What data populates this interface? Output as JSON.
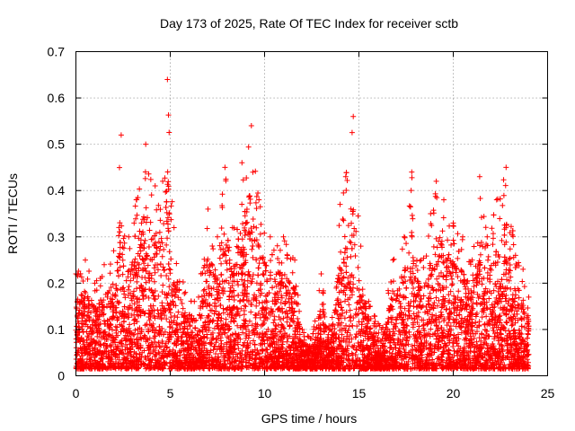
{
  "chart_data": {
    "type": "scatter",
    "title": "Day 173 of 2025, Rate Of TEC Index for receiver sctb",
    "xlabel": "GPS time / hours",
    "ylabel": "ROTI / TECUs",
    "xlim": [
      0,
      25
    ],
    "ylim": [
      0,
      0.7
    ],
    "x_ticks": [
      "0",
      "5",
      "10",
      "15",
      "20",
      "25"
    ],
    "y_ticks": [
      "0",
      "0.1",
      "0.2",
      "0.3",
      "0.4",
      "0.5",
      "0.6",
      "0.7"
    ],
    "grid": true,
    "marker": "+",
    "series_color": "#ff0000",
    "series": [
      {
        "name": "ROTI",
        "envelope_note": "upper envelope of dense scatter, (hour, ROTI)",
        "envelope": [
          [
            0.0,
            0.22
          ],
          [
            0.5,
            0.25
          ],
          [
            1.0,
            0.2
          ],
          [
            1.5,
            0.24
          ],
          [
            2.0,
            0.27
          ],
          [
            2.4,
            0.52
          ],
          [
            2.8,
            0.3
          ],
          [
            3.2,
            0.38
          ],
          [
            3.7,
            0.5
          ],
          [
            4.2,
            0.41
          ],
          [
            4.6,
            0.42
          ],
          [
            4.85,
            0.64
          ],
          [
            5.2,
            0.32
          ],
          [
            5.8,
            0.18
          ],
          [
            6.5,
            0.17
          ],
          [
            7.0,
            0.36
          ],
          [
            7.5,
            0.3
          ],
          [
            7.9,
            0.45
          ],
          [
            8.3,
            0.32
          ],
          [
            8.8,
            0.46
          ],
          [
            9.3,
            0.54
          ],
          [
            9.7,
            0.38
          ],
          [
            10.3,
            0.3
          ],
          [
            11.0,
            0.3
          ],
          [
            11.6,
            0.25
          ],
          [
            12.0,
            0.1
          ],
          [
            12.5,
            0.08
          ],
          [
            13.0,
            0.22
          ],
          [
            13.5,
            0.1
          ],
          [
            14.0,
            0.37
          ],
          [
            14.3,
            0.43
          ],
          [
            14.7,
            0.56
          ],
          [
            15.1,
            0.28
          ],
          [
            15.6,
            0.15
          ],
          [
            16.2,
            0.1
          ],
          [
            16.8,
            0.25
          ],
          [
            17.4,
            0.3
          ],
          [
            17.8,
            0.44
          ],
          [
            18.3,
            0.25
          ],
          [
            18.8,
            0.35
          ],
          [
            19.1,
            0.42
          ],
          [
            19.5,
            0.38
          ],
          [
            20.0,
            0.33
          ],
          [
            20.5,
            0.3
          ],
          [
            21.0,
            0.25
          ],
          [
            21.4,
            0.43
          ],
          [
            21.8,
            0.3
          ],
          [
            22.3,
            0.38
          ],
          [
            22.8,
            0.45
          ],
          [
            23.3,
            0.26
          ],
          [
            23.7,
            0.23
          ],
          [
            24.0,
            0.17
          ]
        ]
      }
    ]
  }
}
